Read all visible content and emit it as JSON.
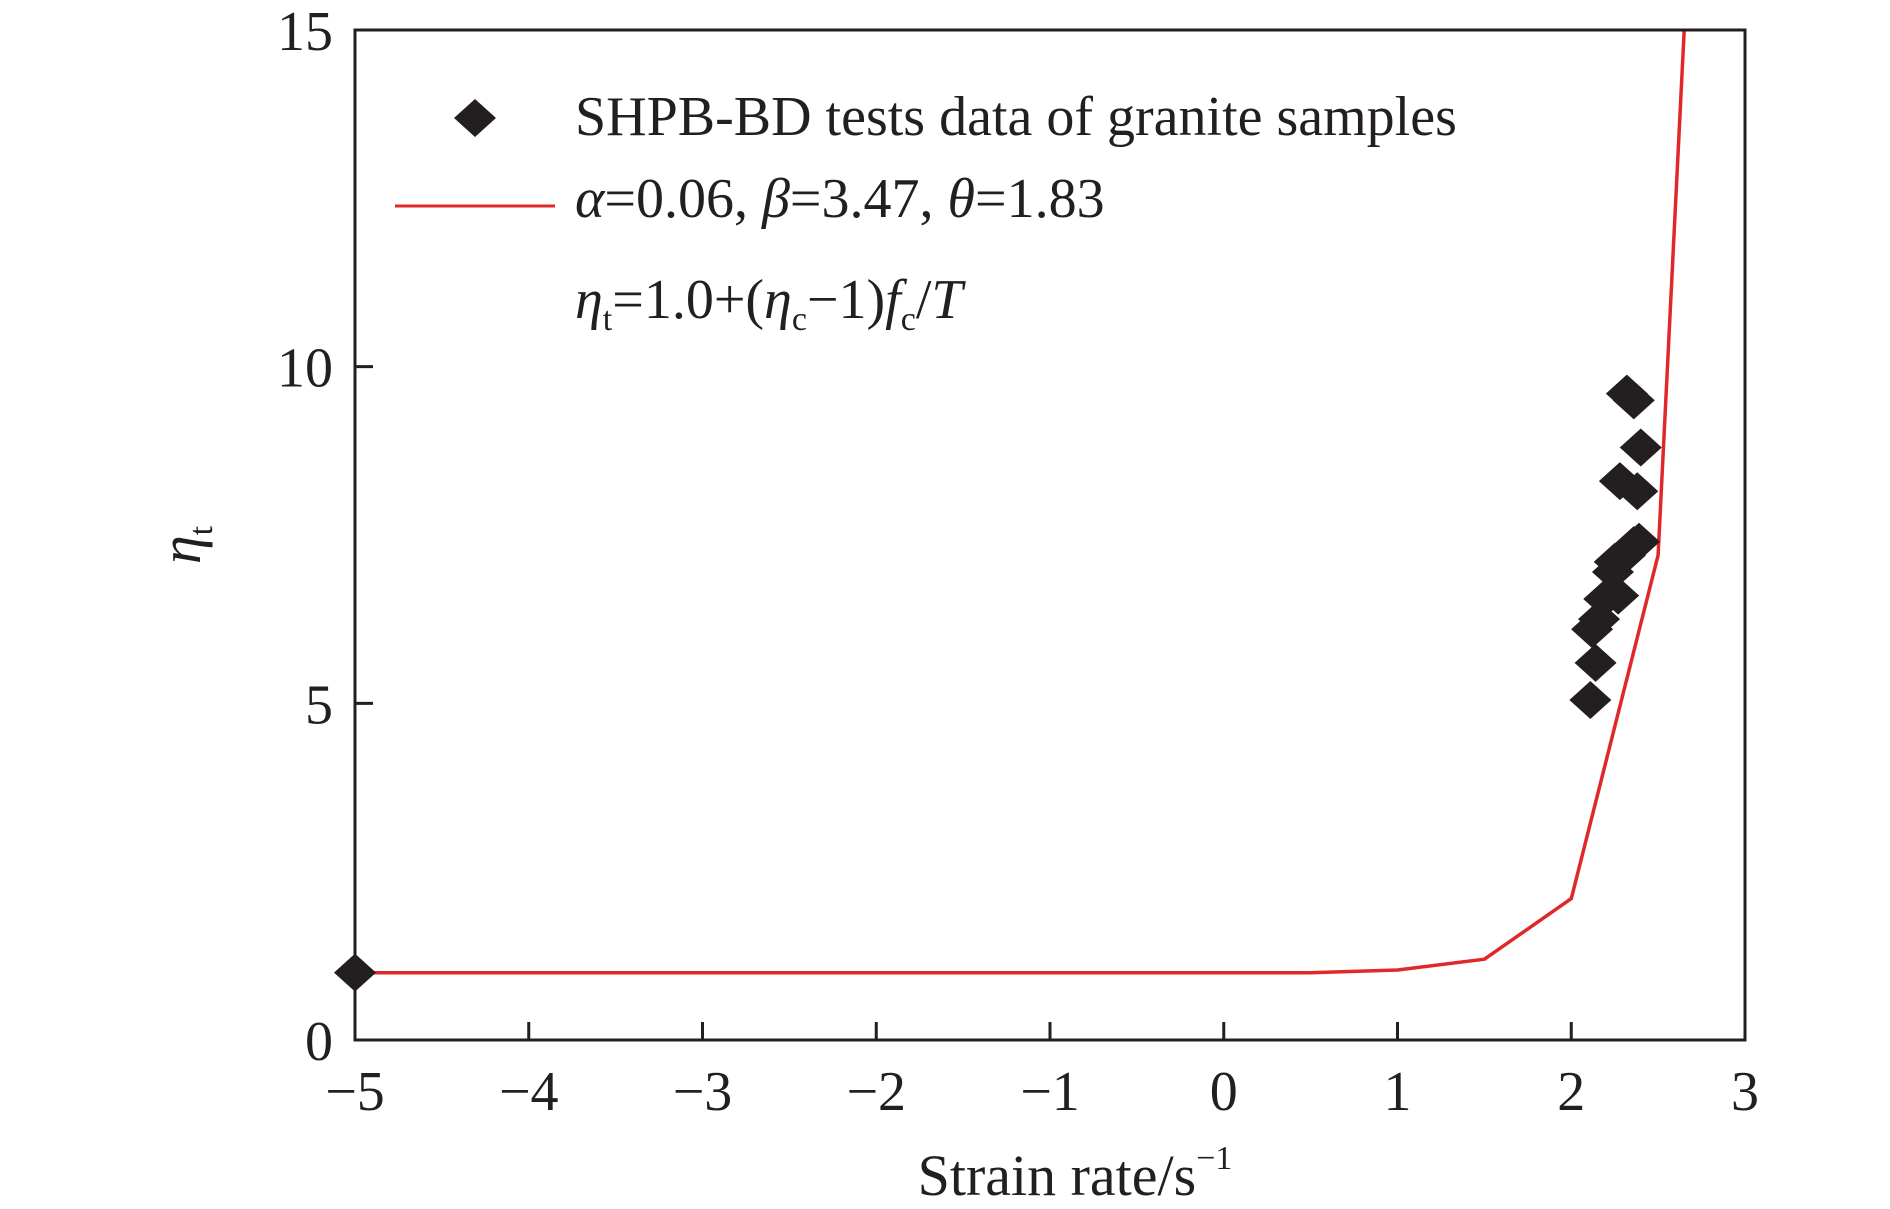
{
  "chart_data": {
    "type": "scatter",
    "title": "",
    "xlabel": "Strain rate/s",
    "xlabel_exponent": "−1",
    "ylabel": "η",
    "ylabel_subscript": "t",
    "xlim": [
      -5,
      3
    ],
    "ylim": [
      0,
      15
    ],
    "x_ticks": [
      -5,
      -4,
      -3,
      -2,
      -1,
      0,
      1,
      2,
      3
    ],
    "x_tick_labels": [
      "−5",
      "−4",
      "−3",
      "−2",
      "−1",
      "0",
      "1",
      "2",
      "3"
    ],
    "y_ticks": [
      0,
      5,
      10,
      15
    ],
    "y_tick_labels": [
      "0",
      "5",
      "10",
      "15"
    ],
    "grid": false,
    "legend_position": "top",
    "colors": {
      "scatter": "#231f20",
      "model_line": "#e0282a",
      "axis": "#231f20"
    },
    "series": [
      {
        "name": "SHPB-BD tests data of granite samples",
        "kind": "scatter",
        "marker": "diamond",
        "points": [
          {
            "x": -5.0,
            "y": 1.0
          },
          {
            "x": 2.11,
            "y": 5.05
          },
          {
            "x": 2.14,
            "y": 5.6
          },
          {
            "x": 2.12,
            "y": 6.1
          },
          {
            "x": 2.16,
            "y": 6.25
          },
          {
            "x": 2.19,
            "y": 6.55
          },
          {
            "x": 2.27,
            "y": 6.6
          },
          {
            "x": 2.24,
            "y": 6.95
          },
          {
            "x": 2.25,
            "y": 7.1
          },
          {
            "x": 2.31,
            "y": 7.2
          },
          {
            "x": 2.36,
            "y": 7.35
          },
          {
            "x": 2.39,
            "y": 7.4
          },
          {
            "x": 2.28,
            "y": 8.3
          },
          {
            "x": 2.38,
            "y": 8.15
          },
          {
            "x": 2.4,
            "y": 8.8
          },
          {
            "x": 2.32,
            "y": 9.6
          },
          {
            "x": 2.36,
            "y": 9.5
          }
        ]
      },
      {
        "kind": "line",
        "label_parts": [
          {
            "text": "α",
            "italic": true
          },
          {
            "text": "=0.06, ",
            "italic": false
          },
          {
            "text": "β",
            "italic": true
          },
          {
            "text": "=3.47, ",
            "italic": false
          },
          {
            "text": "θ",
            "italic": true
          },
          {
            "text": "=1.83",
            "italic": false
          }
        ],
        "x": [
          -5,
          -4,
          -3,
          -2,
          -1,
          0,
          0.5,
          1.0,
          1.5,
          2.0,
          2.5,
          2.65
        ],
        "y": [
          1.0,
          1.0,
          1.0,
          1.0,
          1.0,
          1.0,
          1.0,
          1.04,
          1.2,
          2.1,
          7.2,
          15.0
        ]
      }
    ],
    "annotation": {
      "parts": [
        {
          "text": "η",
          "italic": true
        },
        {
          "text": "t",
          "sub": true
        },
        {
          "text": "=1.0+(",
          "italic": false
        },
        {
          "text": "η",
          "italic": true
        },
        {
          "text": "c",
          "sub": true
        },
        {
          "text": "−1)",
          "italic": false
        },
        {
          "text": "f",
          "italic": true
        },
        {
          "text": "c",
          "sub": true
        },
        {
          "text": "/",
          "italic": false
        },
        {
          "text": "T",
          "italic": true
        }
      ]
    }
  }
}
